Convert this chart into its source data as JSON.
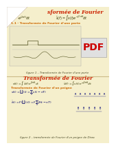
{
  "bg_color": "#f5efcc",
  "panel1_bg": "#f5efcc",
  "panel2_bg": "#f5efcc",
  "white_bg": "#ffffff",
  "title_color": "#cc2200",
  "subtitle_color": "#cc6600",
  "formula_color": "#333300",
  "formula_color2": "#000066",
  "label1": "figure 1 – Transformée de Fourier d'une porte",
  "label2": "figure 2 – transformée de Fourier d'un peigne de Dirac",
  "section1_title": "sformée de Fourier",
  "section2_title": "Transformée de Fourier",
  "subsection1": "1.1 - Transformée de Fourier d'une porte",
  "subsection2": "Transformée de Fourier d'un peigne",
  "formula1a": "s(t)=\\int\\hat{s}(f)e^{j2\\pi ft}dt",
  "formula1b": "s(f)=\\int s(t)e^{-j2\\pi ft}dt",
  "pdf_label": "PDF",
  "pdf_color": "#cc0000",
  "border_color": "#ccbb88",
  "line_color": "#555522",
  "comb_color": "#333388"
}
